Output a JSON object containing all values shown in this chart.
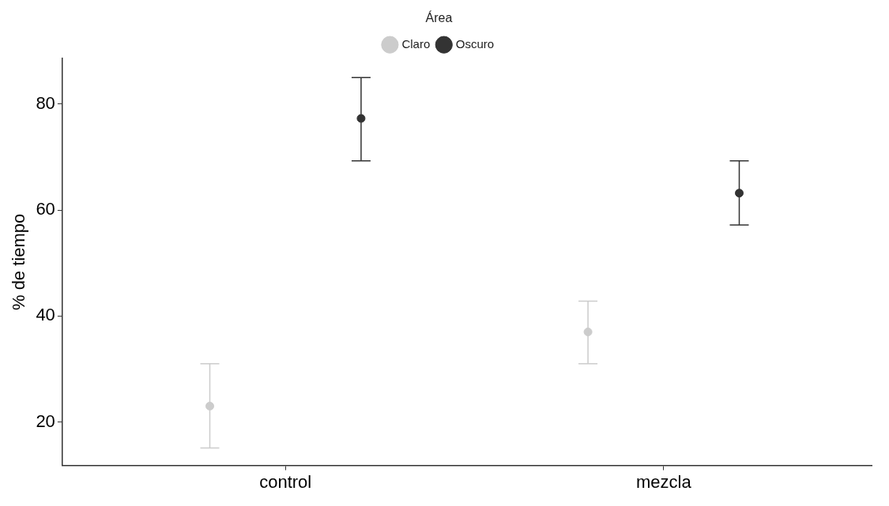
{
  "chart_data": {
    "type": "scatter",
    "ylabel": "% de tiempo",
    "legend_title": "Área",
    "legend": "top",
    "grid": false,
    "marker": "circle",
    "categories": [
      "control",
      "mezcla"
    ],
    "ylim": [
      11.8,
      88.6
    ],
    "yticks": [
      20,
      40,
      60,
      80
    ],
    "series": [
      {
        "name": "Claro",
        "color": "#cccccc",
        "values": [
          23,
          37
        ],
        "errors": [
          [
            15.1,
            31
          ],
          [
            31,
            42.8
          ]
        ]
      },
      {
        "name": "Oscuro",
        "color": "#333333",
        "values": [
          77.3,
          63.2
        ],
        "errors": [
          [
            69.3,
            85
          ],
          [
            57.2,
            69.3
          ]
        ]
      }
    ]
  }
}
